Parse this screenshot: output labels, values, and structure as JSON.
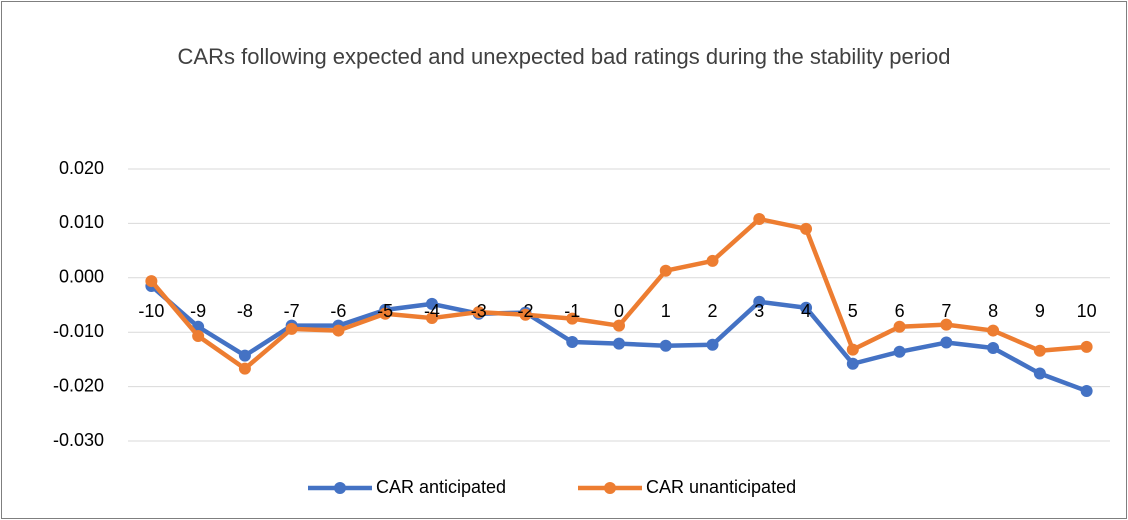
{
  "chart_data": {
    "type": "line",
    "title": "CARs following expected and unexpected bad ratings during the stability period",
    "categories": [
      "-10",
      "-9",
      "-8",
      "-7",
      "-6",
      "-5",
      "-4",
      "-3",
      "-2",
      "-1",
      "0",
      "1",
      "2",
      "3",
      "4",
      "5",
      "6",
      "7",
      "8",
      "9",
      "10"
    ],
    "series": [
      {
        "name": "CAR anticipated",
        "color": "#4472c4",
        "values": [
          -0.0015,
          -0.009,
          -0.0143,
          -0.0088,
          -0.0088,
          -0.0059,
          -0.0048,
          -0.0066,
          -0.0064,
          -0.0118,
          -0.0121,
          -0.0125,
          -0.0123,
          -0.0044,
          -0.0055,
          -0.0158,
          -0.0136,
          -0.0119,
          -0.0129,
          -0.0176,
          -0.0208
        ]
      },
      {
        "name": "CAR unanticipated",
        "color": "#ed7d31",
        "values": [
          -0.0006,
          -0.0107,
          -0.0167,
          -0.0094,
          -0.0097,
          -0.0066,
          -0.0074,
          -0.0063,
          -0.0068,
          -0.0075,
          -0.0088,
          0.0013,
          0.0031,
          0.0108,
          0.009,
          -0.0132,
          -0.009,
          -0.0086,
          -0.0097,
          -0.0134,
          -0.0127
        ]
      }
    ],
    "ylim": [
      -0.03,
      0.02
    ],
    "yticks": [
      {
        "value": 0.02,
        "label": "0.020"
      },
      {
        "value": 0.01,
        "label": "0.010"
      },
      {
        "value": 0,
        "label": "0.000"
      },
      {
        "value": -0.01,
        "label": "-0.010"
      },
      {
        "value": -0.02,
        "label": "-0.020"
      },
      {
        "value": -0.03,
        "label": "-0.030"
      }
    ],
    "grid": true,
    "legend": "bottom"
  }
}
